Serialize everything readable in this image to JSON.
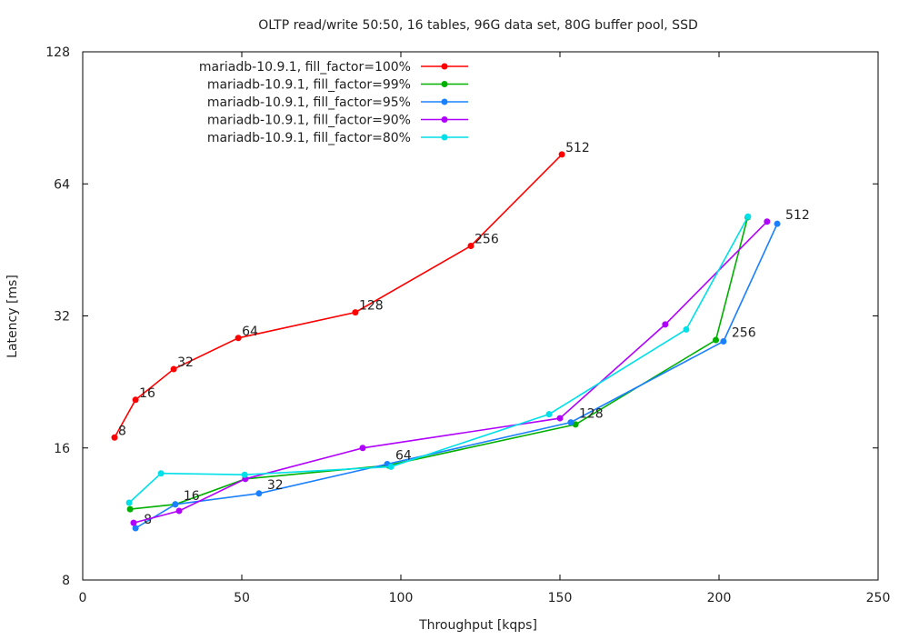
{
  "chart_data": {
    "type": "line",
    "title": "OLTP read/write 50:50, 16 tables, 96G data set, 80G buffer pool, SSD",
    "xlabel": "Throughput [kqps]",
    "ylabel": "Latency [ms]",
    "xlim": [
      0,
      250
    ],
    "ylim": [
      8,
      128
    ],
    "yscale": "log2",
    "xticks": [
      0,
      50,
      100,
      150,
      200,
      250
    ],
    "yticks": [
      8,
      16,
      32,
      64,
      128
    ],
    "legend_position": "top-left",
    "point_labels": [
      "8",
      "16",
      "32",
      "64",
      "128",
      "256",
      "512"
    ],
    "series": [
      {
        "name": "mariadb-10.9.1, fill_factor=100%",
        "color": "#ff0000",
        "labeled": true,
        "x": [
          10,
          16.6,
          28.6,
          48.9,
          85.7,
          122,
          150.6
        ],
        "y": [
          16.9,
          20.6,
          24.2,
          28.5,
          32.6,
          46.2,
          74.7
        ]
      },
      {
        "name": "mariadb-10.9.1, fill_factor=99%",
        "color": "#00b000",
        "labeled": false,
        "x": [
          14.9,
          29.1,
          51.1,
          96,
          154.9,
          199,
          209
        ],
        "y": [
          11.6,
          11.9,
          13.6,
          14.6,
          18.1,
          28.2,
          53.7
        ]
      },
      {
        "name": "mariadb-10.9.1, fill_factor=95%",
        "color": "#1a80ff",
        "labeled": true,
        "x": [
          16.6,
          29.1,
          55.4,
          95.7,
          153.4,
          201.4,
          218.3
        ],
        "y": [
          10.5,
          11.9,
          12.6,
          14.7,
          18.3,
          28.0,
          51.9
        ]
      },
      {
        "name": "mariadb-10.9.1, fill_factor=90%",
        "color": "#b000ff",
        "labeled": false,
        "x": [
          16,
          30.3,
          51.1,
          88,
          150,
          183.1,
          215.1
        ],
        "y": [
          10.8,
          11.5,
          13.6,
          16.0,
          18.7,
          30.6,
          52.5
        ]
      },
      {
        "name": "mariadb-10.9.1, fill_factor=80%",
        "color": "#00e0e8",
        "labeled": false,
        "x": [
          14.6,
          24.6,
          50.9,
          96.9,
          146.6,
          189.7,
          209.1
        ],
        "y": [
          12.0,
          14.0,
          13.9,
          14.5,
          19.1,
          29.8,
          53.9
        ]
      }
    ]
  }
}
